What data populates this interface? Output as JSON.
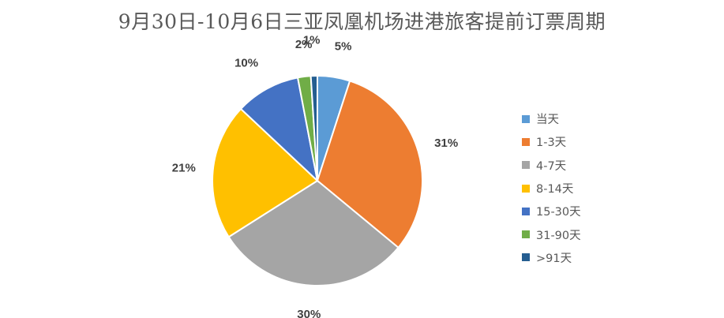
{
  "chart_data": {
    "type": "pie",
    "title": "9月30日-10月6日三亚凤凰机场进港旅客提前订票周期",
    "legend_position": "right",
    "slices": [
      {
        "label": "当天",
        "value": 5,
        "display": "5%",
        "color": "#5B9BD5"
      },
      {
        "label": "1-3天",
        "value": 31,
        "display": "31%",
        "color": "#ED7D31"
      },
      {
        "label": "4-7天",
        "value": 30,
        "display": "30%",
        "color": "#A5A5A5"
      },
      {
        "label": "8-14天",
        "value": 21,
        "display": "21%",
        "color": "#FFC000"
      },
      {
        "label": "15-30天",
        "value": 10,
        "display": "10%",
        "color": "#4472C4"
      },
      {
        "label": "31-90天",
        "value": 2,
        "display": "2%",
        "color": "#70AD47"
      },
      {
        "label": ">91天",
        "value": 1,
        "display": "1%",
        "color": "#255E91"
      }
    ]
  }
}
